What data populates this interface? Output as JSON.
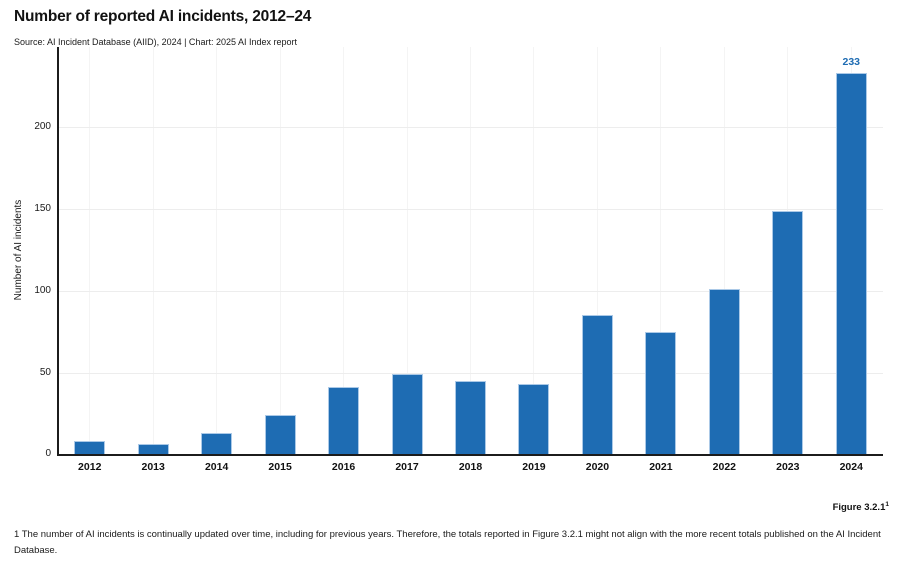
{
  "header": {
    "title": "Number of reported AI incidents, 2012–24",
    "source": "Source: AI Incident Database (AIID), 2024 | Chart: 2025 AI Index report"
  },
  "chart_data": {
    "type": "bar",
    "title": "Number of reported AI incidents, 2012–24",
    "categories": [
      "2012",
      "2013",
      "2014",
      "2015",
      "2016",
      "2017",
      "2018",
      "2019",
      "2020",
      "2021",
      "2022",
      "2023",
      "2024"
    ],
    "values": [
      8,
      6,
      13,
      24,
      41,
      49,
      45,
      43,
      85,
      75,
      101,
      149,
      233
    ],
    "xlabel": "",
    "ylabel": "Number of AI incidents",
    "ylim": [
      0,
      249
    ],
    "yticks": [
      0,
      50,
      100,
      150,
      200
    ],
    "grid": true,
    "legend": "none",
    "annotation": {
      "category": "2024",
      "label": "233"
    },
    "colors": {
      "bar_fill": "#1e6cb3",
      "bar_edge": "#abc9e7",
      "annotation_text": "#1e6cb3",
      "axis": "#1c1c1c",
      "hgrid": "#ededed",
      "vgrid": "#f4f4f4"
    }
  },
  "footer": {
    "figure_label": "Figure 3.2.1",
    "figure_superscript": "1",
    "footnote": "1 The number of AI incidents is continually updated over time, including for previous years. Therefore, the totals reported in Figure 3.2.1 might not align with the more recent totals published on the AI Incident Database."
  }
}
